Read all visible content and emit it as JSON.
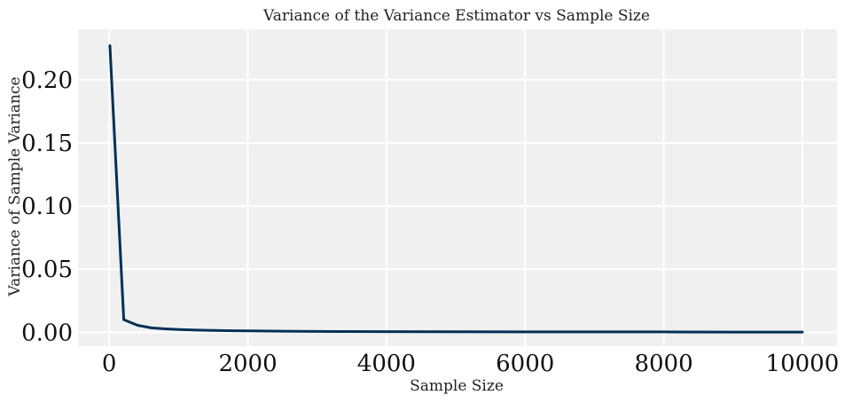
{
  "chart_data": {
    "type": "line",
    "title": "Variance of the Variance Estimator vs Sample Size",
    "xlabel": "Sample Size",
    "ylabel": "Variance of Sample Variance",
    "xlim": [
      -450,
      10500
    ],
    "ylim": [
      -0.011,
      0.24
    ],
    "x_ticks": [
      0,
      2000,
      4000,
      6000,
      8000,
      10000
    ],
    "x_tick_labels": [
      "0",
      "2000",
      "4000",
      "6000",
      "8000",
      "10000"
    ],
    "y_ticks": [
      0.0,
      0.05,
      0.1,
      0.15,
      0.2
    ],
    "y_tick_labels": [
      "0.00",
      "0.05",
      "0.10",
      "0.15",
      "0.20"
    ],
    "grid": true,
    "background_color": "#f0f0f0",
    "grid_color": "#ffffff",
    "series": [
      {
        "color": "#003057",
        "x": [
          10,
          210,
          410,
          610,
          810,
          1010,
          1210,
          1410,
          1610,
          1810,
          2010,
          2500,
          3000,
          3500,
          4000,
          5000,
          6000,
          7000,
          8000,
          9000,
          10000
        ],
        "y": [
          0.227,
          0.01,
          0.0055,
          0.0035,
          0.0027,
          0.0022,
          0.0018,
          0.0016,
          0.0014,
          0.0012,
          0.0011,
          0.0009,
          0.0007,
          0.0006,
          0.0005,
          0.0004,
          0.0003,
          0.0003,
          0.0003,
          0.0002,
          0.0002
        ]
      }
    ]
  }
}
